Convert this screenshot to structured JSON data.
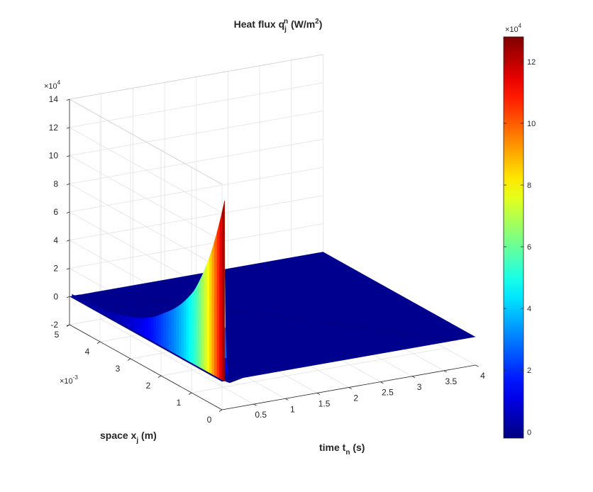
{
  "chart_data": {
    "type": "surface",
    "title": {
      "base": "Heat flux q",
      "sub": "j",
      "sup": "n",
      "rest": " (W/m",
      "unit_sup": "2",
      "close": ")"
    },
    "xlabel": {
      "base": "time t",
      "sub": "n",
      "rest": " (s)"
    },
    "ylabel": {
      "base": "space x",
      "sub": "j",
      "rest": " (m)"
    },
    "xlim": [
      0,
      4
    ],
    "ylim": [
      0,
      0.005
    ],
    "zlim": [
      -20000,
      140000
    ],
    "x_ticks": [
      "0.5",
      "1",
      "1.5",
      "2",
      "2.5",
      "3",
      "3.5",
      "4"
    ],
    "y_ticks": [
      "0",
      "1",
      "2",
      "3",
      "4",
      "5"
    ],
    "y_exponent": {
      "base": "×10",
      "power": "-3"
    },
    "z_ticks": [
      "-2",
      "0",
      "2",
      "4",
      "6",
      "8",
      "10",
      "12",
      "14"
    ],
    "z_exponent": {
      "base": "×10",
      "power": "4"
    },
    "grid": true,
    "colorbar": {
      "colormap": "jet",
      "range": [
        -2000,
        128000
      ],
      "ticks": [
        "0",
        "2",
        "4",
        "6",
        "8",
        "10",
        "12"
      ],
      "exponent": {
        "base": "×10",
        "power": "4"
      }
    },
    "surface": {
      "baseline": 0,
      "peak": {
        "t": 0.04,
        "x": 0.0,
        "q": 128000
      },
      "ridge": [
        {
          "x": 0.0,
          "q": 128000
        },
        {
          "x": 0.001,
          "q": 52000
        },
        {
          "x": 0.002,
          "q": 24000
        },
        {
          "x": 0.003,
          "q": 9000
        },
        {
          "x": 0.004,
          "q": 3000
        },
        {
          "x": 0.005,
          "q": 1200
        }
      ],
      "undershoot_q": -2000
    }
  }
}
